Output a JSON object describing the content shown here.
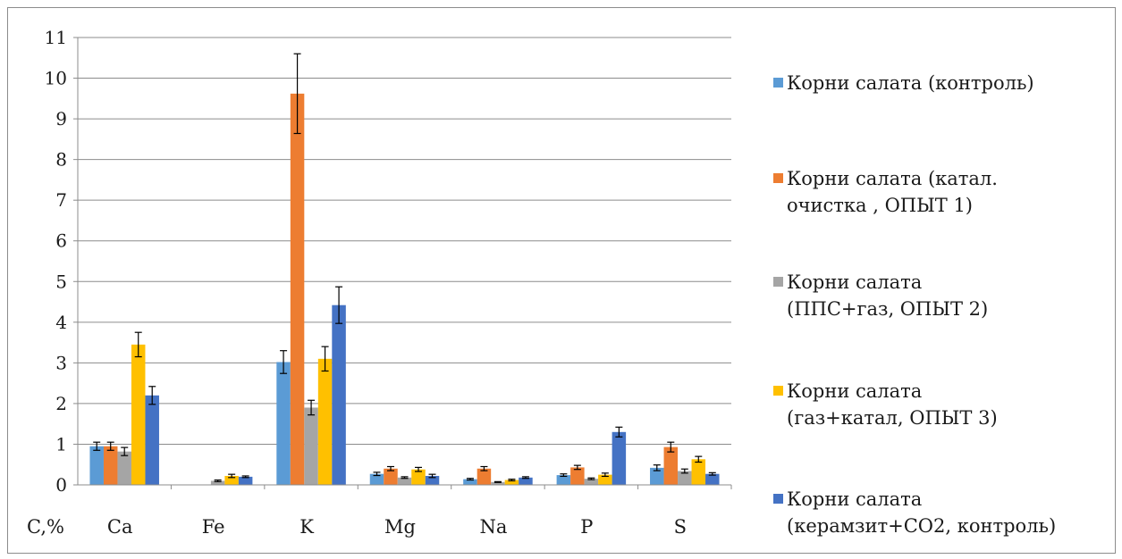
{
  "chart_data": {
    "type": "bar",
    "unit_label": "C,%",
    "categories": [
      "Ca",
      "Fe",
      "K",
      "Mg",
      "Na",
      "P",
      "S"
    ],
    "ylim": [
      0,
      11
    ],
    "yticks": [
      0,
      1,
      2,
      3,
      4,
      5,
      6,
      7,
      8,
      9,
      10,
      11
    ],
    "grid": true,
    "legend_position": "right",
    "series": [
      {
        "name": "Корни салата (контроль)",
        "color": "#5b9bd5",
        "values": [
          0.95,
          0,
          3.02,
          0.27,
          0.14,
          0.24,
          0.42
        ],
        "errors": [
          0.1,
          0,
          0.28,
          0.04,
          0.02,
          0.03,
          0.07
        ]
      },
      {
        "name": "Корни салата  (катал.\nочистка , ОПЫТ 1)",
        "color": "#ed7d31",
        "values": [
          0.95,
          0,
          9.62,
          0.4,
          0.4,
          0.43,
          0.93
        ],
        "errors": [
          0.1,
          0,
          0.98,
          0.05,
          0.05,
          0.05,
          0.12
        ]
      },
      {
        "name": "Корни салата\n(ППС+газ, ОПЫТ 2)",
        "color": "#a5a5a5",
        "values": [
          0.82,
          0.1,
          1.9,
          0.18,
          0.07,
          0.15,
          0.34
        ],
        "errors": [
          0.1,
          0.02,
          0.18,
          0.02,
          0.01,
          0.02,
          0.05
        ]
      },
      {
        "name": "Корни салата\n(газ+катал, ОПЫТ 3)",
        "color": "#ffc000",
        "values": [
          3.45,
          0.22,
          3.1,
          0.38,
          0.12,
          0.25,
          0.63
        ],
        "errors": [
          0.3,
          0.04,
          0.3,
          0.05,
          0.02,
          0.04,
          0.07
        ]
      },
      {
        "name": "Корни салата\n(керамзит+СО2, контроль)",
        "color": "#4472c4",
        "values": [
          2.2,
          0.2,
          4.42,
          0.22,
          0.18,
          1.3,
          0.27
        ],
        "errors": [
          0.22,
          0.02,
          0.45,
          0.04,
          0.02,
          0.12,
          0.03
        ]
      }
    ]
  }
}
